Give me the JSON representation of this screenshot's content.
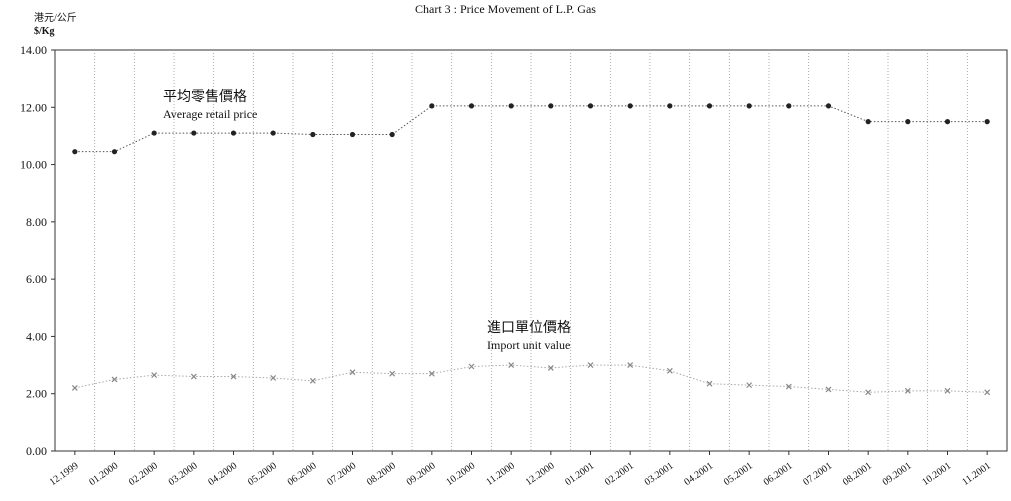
{
  "chart_data": {
    "type": "line",
    "title": "Chart 3 :  Price Movement of L.P. Gas",
    "ylabel": "港元/公斤",
    "ylabel_unit": "$/Kg",
    "categories": [
      "12.1999",
      "01.2000",
      "02.2000",
      "03.2000",
      "04.2000",
      "05.2000",
      "06.2000",
      "07.2000",
      "08.2000",
      "09.2000",
      "10.2000",
      "11.2000",
      "12.2000",
      "01.2001",
      "02.2001",
      "03.2001",
      "04.2001",
      "05.2001",
      "06.2001",
      "07.2001",
      "08.2001",
      "09.2001",
      "10.2001",
      "11.2001"
    ],
    "ylim": [
      0,
      14
    ],
    "yticks": [
      "0.00",
      "2.00",
      "4.00",
      "6.00",
      "8.00",
      "10.00",
      "12.00",
      "14.00"
    ],
    "grid": true,
    "series": [
      {
        "name": "Average retail price",
        "name_zh": "平均零售價格",
        "values": [
          10.45,
          10.45,
          11.1,
          11.1,
          11.1,
          11.1,
          11.05,
          11.05,
          11.05,
          12.05,
          12.05,
          12.05,
          12.05,
          12.05,
          12.05,
          12.05,
          12.05,
          12.05,
          12.05,
          12.05,
          11.5,
          11.5,
          11.5,
          11.5
        ],
        "color": "#222222",
        "marker": "dot"
      },
      {
        "name": "Import unit value",
        "name_zh": "進口單位價格",
        "values": [
          2.2,
          2.5,
          2.65,
          2.6,
          2.6,
          2.55,
          2.45,
          2.75,
          2.7,
          2.7,
          2.95,
          3.0,
          2.9,
          3.0,
          3.0,
          2.8,
          2.35,
          2.3,
          2.25,
          2.15,
          2.05,
          2.1,
          2.1,
          2.05
        ],
        "color": "#888888",
        "marker": "x"
      }
    ]
  }
}
